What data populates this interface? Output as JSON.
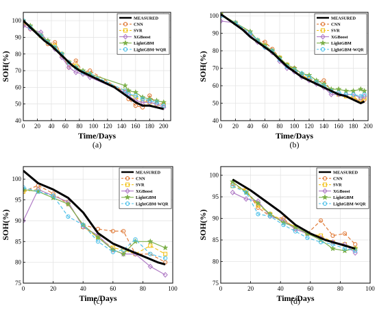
{
  "series_styles": [
    {
      "key": "measured",
      "color": "#000000",
      "marker": "none",
      "dash": "",
      "width": 3.0
    },
    {
      "key": "cnn",
      "color": "#e07b39",
      "marker": "circle",
      "dash": "5,3",
      "width": 1.2
    },
    {
      "key": "svr",
      "color": "#f2c21b",
      "marker": "square",
      "dash": "5,3",
      "width": 1.2
    },
    {
      "key": "xgb",
      "color": "#b07cc6",
      "marker": "diamond",
      "dash": "",
      "width": 1.2
    },
    {
      "key": "lgbm",
      "color": "#7db04b",
      "marker": "star",
      "dash": "",
      "width": 1.2
    },
    {
      "key": "wqr",
      "color": "#4fc1e9",
      "marker": "circle",
      "dash": "5,3",
      "width": 1.2
    }
  ],
  "chart_data": [
    {
      "type": "line",
      "panel_label": "(a)",
      "xlabel": "Time/Days",
      "ylabel": "SOH(%)",
      "xlim": [
        0,
        210
      ],
      "ylim": [
        40,
        105
      ],
      "xticks": [
        0,
        20,
        40,
        60,
        80,
        100,
        120,
        140,
        160,
        180,
        200
      ],
      "yticks": [
        40,
        50,
        60,
        70,
        80,
        90,
        100
      ],
      "grid": true,
      "legend_position": "top-right",
      "series": [
        {
          "name": "MEASURED",
          "x": [
            0,
            10,
            20,
            30,
            40,
            50,
            60,
            70,
            80,
            90,
            100,
            110,
            120,
            130,
            140,
            150,
            160,
            170,
            180,
            190,
            200
          ],
          "y": [
            100,
            96,
            92,
            88,
            85,
            81,
            77,
            73,
            70,
            68,
            66,
            64,
            62,
            60,
            57,
            54,
            51,
            49,
            49,
            48,
            47
          ]
        },
        {
          "name": "CNN",
          "x": [
            0,
            10,
            25,
            35,
            45,
            55,
            65,
            75,
            85,
            95,
            145,
            150,
            160,
            170,
            180,
            190,
            200
          ],
          "y": [
            98,
            95,
            91,
            86,
            87,
            79,
            72,
            76,
            69,
            70,
            57,
            53,
            49,
            48,
            55,
            50,
            50
          ]
        },
        {
          "name": "SVR",
          "x": [
            0,
            10,
            25,
            35,
            45,
            55,
            65,
            75,
            85,
            95,
            145,
            150,
            160,
            170,
            180,
            190,
            200
          ],
          "y": [
            99,
            96,
            91,
            87,
            85,
            80,
            75,
            73,
            69,
            68,
            58,
            56,
            54,
            52,
            51,
            50,
            49
          ]
        },
        {
          "name": "XGBoost",
          "x": [
            0,
            10,
            25,
            35,
            45,
            55,
            65,
            75,
            85,
            95,
            145,
            150,
            160,
            170,
            180,
            190,
            200
          ],
          "y": [
            97,
            95,
            93,
            87,
            83,
            78,
            72,
            69,
            68,
            66,
            57,
            55,
            52,
            51,
            51,
            50,
            48
          ]
        },
        {
          "name": "LightGBM",
          "x": [
            0,
            10,
            25,
            35,
            45,
            55,
            65,
            75,
            85,
            95,
            145,
            150,
            160,
            170,
            180,
            190,
            200
          ],
          "y": [
            100,
            97,
            91,
            88,
            84,
            80,
            75,
            72,
            70,
            68,
            61,
            58,
            57,
            54,
            53,
            52,
            51
          ]
        },
        {
          "name": "LightGBM-WQR",
          "x": [
            0,
            10,
            25,
            35,
            45,
            55,
            65,
            75,
            85,
            95,
            145,
            150,
            160,
            170,
            180,
            190,
            200
          ],
          "y": [
            100,
            96,
            91,
            87,
            84,
            80,
            75,
            72,
            69,
            68,
            58,
            56,
            55,
            53,
            52,
            51,
            49
          ]
        }
      ]
    },
    {
      "type": "line",
      "panel_label": "(b)",
      "xlabel": "Time/Days",
      "ylabel": "SOH(%)",
      "xlim": [
        0,
        200
      ],
      "ylim": [
        40,
        102
      ],
      "xticks": [
        0,
        20,
        40,
        60,
        80,
        100,
        120,
        140,
        160,
        180,
        200
      ],
      "yticks": [
        40,
        50,
        60,
        70,
        80,
        90,
        100
      ],
      "grid": true,
      "legend_position": "top-right",
      "series": [
        {
          "name": "MEASURED",
          "x": [
            0,
            10,
            20,
            30,
            40,
            50,
            60,
            70,
            80,
            90,
            100,
            110,
            120,
            130,
            140,
            150,
            160,
            170,
            180,
            190,
            195
          ],
          "y": [
            101,
            98,
            95,
            92,
            88,
            85,
            82,
            79,
            75,
            71,
            68,
            65,
            63,
            61,
            59,
            57,
            55,
            54,
            52,
            50,
            51
          ]
        },
        {
          "name": "CNN",
          "x": [
            0,
            20,
            40,
            50,
            60,
            70,
            80,
            90,
            100,
            110,
            120,
            130,
            140,
            150,
            160,
            170,
            180,
            190,
            195
          ],
          "y": [
            100,
            96,
            90,
            86,
            85,
            81,
            76,
            72,
            70,
            66,
            64,
            62,
            63,
            57,
            55,
            54,
            53,
            51,
            52
          ]
        },
        {
          "name": "SVR",
          "x": [
            0,
            20,
            40,
            50,
            60,
            70,
            80,
            90,
            100,
            110,
            120,
            130,
            140,
            150,
            160,
            170,
            180,
            190,
            195
          ],
          "y": [
            101,
            96,
            90,
            86,
            83,
            80,
            76,
            72,
            69,
            66,
            64,
            62,
            60,
            57,
            55,
            54,
            53,
            52,
            53
          ]
        },
        {
          "name": "XGBoost",
          "x": [
            0,
            20,
            40,
            50,
            60,
            70,
            80,
            90,
            100,
            110,
            120,
            130,
            140,
            150,
            160,
            170,
            180,
            190,
            195
          ],
          "y": [
            97,
            96,
            89,
            85,
            82,
            79,
            74,
            70,
            68,
            65,
            63,
            61,
            59,
            55,
            55,
            55,
            55,
            53,
            54
          ]
        },
        {
          "name": "LightGBM",
          "x": [
            0,
            20,
            40,
            50,
            60,
            70,
            80,
            90,
            100,
            110,
            120,
            130,
            140,
            150,
            160,
            170,
            180,
            190,
            195
          ],
          "y": [
            101,
            96,
            91,
            86,
            83,
            80,
            76,
            72,
            70,
            67,
            66,
            63,
            61,
            58,
            58,
            57,
            57,
            58,
            57
          ]
        },
        {
          "name": "LightGBM-WQR",
          "x": [
            0,
            20,
            40,
            50,
            60,
            70,
            80,
            90,
            100,
            110,
            120,
            130,
            140,
            150,
            160,
            170,
            180,
            190,
            195
          ],
          "y": [
            100,
            96,
            90,
            86,
            82,
            80,
            75,
            71,
            69,
            67,
            65,
            62,
            60,
            57,
            56,
            55,
            55,
            54,
            55
          ]
        }
      ]
    },
    {
      "type": "line",
      "panel_label": "(c)",
      "xlabel": "Time/Days",
      "ylabel": "SOH(%)",
      "xlim": [
        0,
        100
      ],
      "ylim": [
        75,
        103
      ],
      "xticks": [
        0,
        20,
        40,
        60,
        80,
        100
      ],
      "yticks": [
        75,
        80,
        85,
        90,
        95,
        100
      ],
      "grid": true,
      "legend_position": "top-right",
      "series": [
        {
          "name": "MEASURED",
          "x": [
            0,
            10,
            20,
            30,
            40,
            50,
            60,
            70,
            80,
            90,
            95
          ],
          "y": [
            102,
            99,
            97.5,
            95.5,
            92,
            87,
            84.5,
            83,
            81.5,
            80,
            79.5
          ]
        },
        {
          "name": "CNN",
          "x": [
            0,
            10,
            20,
            30,
            40,
            50,
            60,
            67,
            75,
            85,
            95
          ],
          "y": [
            97,
            98.5,
            96.5,
            94,
            89,
            88,
            87.5,
            87.5,
            82,
            82,
            80
          ]
        },
        {
          "name": "SVR",
          "x": [
            0,
            10,
            20,
            30,
            40,
            50,
            60,
            67,
            75,
            85,
            95
          ],
          "y": [
            97,
            97.5,
            96,
            94.5,
            88.5,
            86,
            83.5,
            83,
            82,
            84,
            82
          ]
        },
        {
          "name": "XGBoost",
          "x": [
            0,
            10,
            20,
            30,
            40,
            50,
            60,
            67,
            75,
            85,
            95
          ],
          "y": [
            90,
            97.5,
            96,
            94.5,
            88.5,
            86.5,
            83,
            82,
            82,
            79,
            77
          ]
        },
        {
          "name": "LightGBM",
          "x": [
            0,
            10,
            20,
            30,
            40,
            50,
            60,
            67,
            75,
            85,
            95
          ],
          "y": [
            97.5,
            97,
            95.5,
            94,
            89,
            86,
            83,
            82,
            85,
            85,
            83.5
          ]
        },
        {
          "name": "LightGBM-WQR",
          "x": [
            0,
            10,
            20,
            30,
            40,
            50,
            60,
            67,
            75,
            85,
            95
          ],
          "y": [
            98,
            97,
            96,
            91,
            89,
            85,
            82.5,
            83,
            85.5,
            82,
            81
          ]
        }
      ]
    },
    {
      "type": "line",
      "panel_label": "(d)",
      "xlabel": "Time/Days",
      "ylabel": "SOH(%)",
      "xlim": [
        0,
        100
      ],
      "ylim": [
        75,
        102
      ],
      "xticks": [
        0,
        20,
        40,
        60,
        80,
        100
      ],
      "yticks": [
        75,
        80,
        85,
        90,
        95,
        100
      ],
      "grid": true,
      "legend_position": "top-right",
      "series": [
        {
          "name": "MEASURED",
          "x": [
            8,
            20,
            30,
            40,
            50,
            60,
            70,
            80,
            90
          ],
          "y": [
            99,
            96.5,
            94,
            91.5,
            88.5,
            86.5,
            85,
            84,
            83
          ]
        },
        {
          "name": "CNN",
          "x": [
            8,
            17,
            25,
            33,
            42,
            50,
            58,
            67,
            75,
            83,
            90
          ],
          "y": [
            98,
            96.5,
            92.5,
            90.5,
            90,
            87.5,
            86.5,
            89.5,
            86,
            86.5,
            84
          ]
        },
        {
          "name": "SVR",
          "x": [
            8,
            17,
            25,
            33,
            42,
            50,
            58,
            67,
            75,
            83,
            90
          ],
          "y": [
            97.5,
            96.5,
            93,
            91,
            89.5,
            88,
            86.5,
            86,
            84.5,
            84,
            83
          ]
        },
        {
          "name": "XGBoost",
          "x": [
            8,
            17,
            25,
            33,
            42,
            50,
            58,
            67,
            75,
            83,
            90
          ],
          "y": [
            96,
            94.5,
            94,
            90.5,
            89.5,
            87.5,
            86.5,
            85.5,
            84.5,
            84,
            82
          ]
        },
        {
          "name": "LightGBM",
          "x": [
            8,
            17,
            25,
            33,
            42,
            50,
            58,
            67,
            75,
            83,
            90
          ],
          "y": [
            98.5,
            96,
            93.5,
            91,
            89,
            88,
            86.5,
            85,
            83,
            82.5,
            83
          ]
        },
        {
          "name": "LightGBM-WQR",
          "x": [
            8,
            17,
            25,
            33,
            42,
            50,
            58,
            67,
            75,
            83,
            90
          ],
          "y": [
            97.5,
            96,
            91,
            90.5,
            88.5,
            87,
            85.5,
            84.5,
            84,
            83,
            82.5
          ]
        }
      ]
    }
  ]
}
